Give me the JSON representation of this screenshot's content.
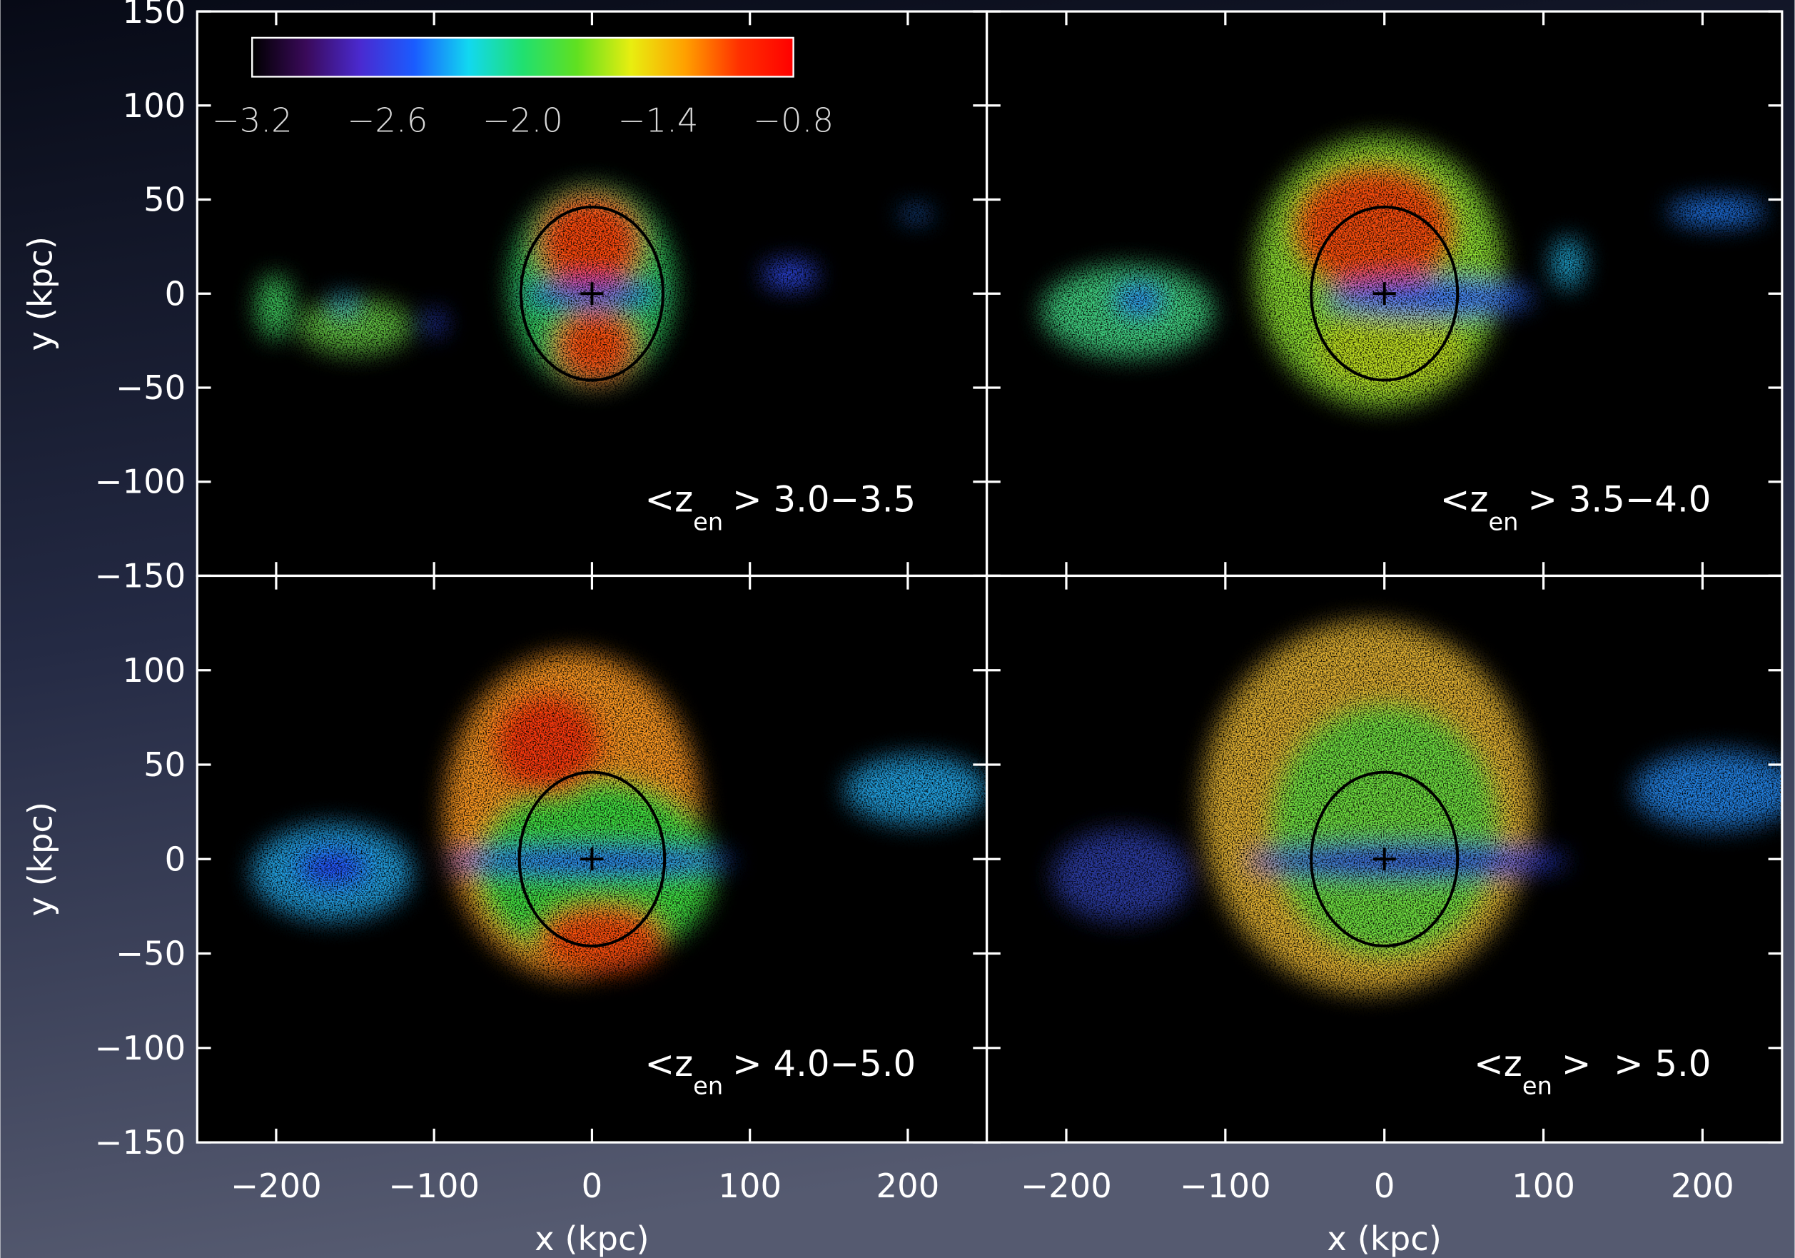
{
  "colorbar": {
    "lim": [
      -3.2,
      -0.8
    ],
    "colors": [
      "#000000",
      "#3a0a5a",
      "#4a2ad0",
      "#1a5cff",
      "#12d8f0",
      "#20e070",
      "#60e020",
      "#e8ee10",
      "#ffa000",
      "#ff3000",
      "#ff0000"
    ],
    "ticks": [
      {
        "value": -3.2,
        "label": "−3.2"
      },
      {
        "value": -2.6,
        "label": "−2.6"
      },
      {
        "value": -2.0,
        "label": "−2.0"
      },
      {
        "value": -1.4,
        "label": "−1.4"
      },
      {
        "value": -0.8,
        "label": "−0.8"
      }
    ]
  },
  "chart_data": [
    {
      "type": "map",
      "annotation": {
        "prefix": "<z",
        "subscript": "en",
        "suffix": "> 3.0−3.5"
      },
      "ylabel": "y (kpc)",
      "xlim": [
        -250,
        250
      ],
      "ylim": [
        -150,
        150
      ],
      "xticks": [
        -200,
        -100,
        0,
        100,
        200
      ],
      "xticklabels": false,
      "yticks": [
        {
          "value": -150,
          "label": "−150"
        },
        {
          "value": -100,
          "label": "−100"
        },
        {
          "value": -50,
          "label": "−50"
        },
        0,
        50,
        100,
        150
      ],
      "yticklabels": true,
      "ellipse": {
        "center": [
          0,
          0
        ],
        "rx": 45,
        "ry": 46
      },
      "marker": [
        0,
        0
      ]
    },
    {
      "type": "map",
      "annotation": {
        "prefix": "<z",
        "subscript": "en",
        "suffix": "> 3.5−4.0"
      },
      "xlim": [
        -250,
        250
      ],
      "ylim": [
        -150,
        150
      ],
      "xticks": [
        -200,
        -100,
        0,
        100,
        200
      ],
      "xticklabels": false,
      "yticks": [
        -150,
        -100,
        -50,
        0,
        50,
        100,
        150
      ],
      "yticklabels": false,
      "ellipse": {
        "center": [
          0,
          0
        ],
        "rx": 46,
        "ry": 46
      },
      "marker": [
        0,
        0
      ]
    },
    {
      "type": "map",
      "annotation": {
        "prefix": "<z",
        "subscript": "en",
        "suffix": "> 4.0−5.0"
      },
      "xlabel": "x (kpc)",
      "ylabel": "y (kpc)",
      "xlim": [
        -250,
        250
      ],
      "ylim": [
        -150,
        150
      ],
      "xticks": [
        {
          "value": -200,
          "label": "−200"
        },
        {
          "value": -100,
          "label": "−100"
        },
        0,
        100,
        200
      ],
      "xticklabels": true,
      "yticks": [
        {
          "value": -150,
          "label": "−150"
        },
        {
          "value": -100,
          "label": "−100"
        },
        {
          "value": -50,
          "label": "−50"
        },
        0,
        50,
        100
      ],
      "yticklabels": true,
      "ellipse": {
        "center": [
          0,
          0
        ],
        "rx": 46,
        "ry": 46
      },
      "marker": [
        0,
        0
      ]
    },
    {
      "type": "map",
      "annotation": {
        "prefix": "<z",
        "subscript": "en",
        "suffix": ">  > 5.0"
      },
      "xlabel": "x (kpc)",
      "xlim": [
        -250,
        250
      ],
      "ylim": [
        -150,
        150
      ],
      "xticks": [
        {
          "value": -200,
          "label": "−200"
        },
        {
          "value": -100,
          "label": "−100"
        },
        0,
        100,
        200
      ],
      "xticklabels": true,
      "yticks": [
        -150,
        -100,
        -50,
        0,
        50,
        100,
        150
      ],
      "yticklabels": false,
      "ellipse": {
        "center": [
          0,
          0
        ],
        "rx": 46,
        "ry": 46
      },
      "marker": [
        0,
        0
      ]
    }
  ]
}
